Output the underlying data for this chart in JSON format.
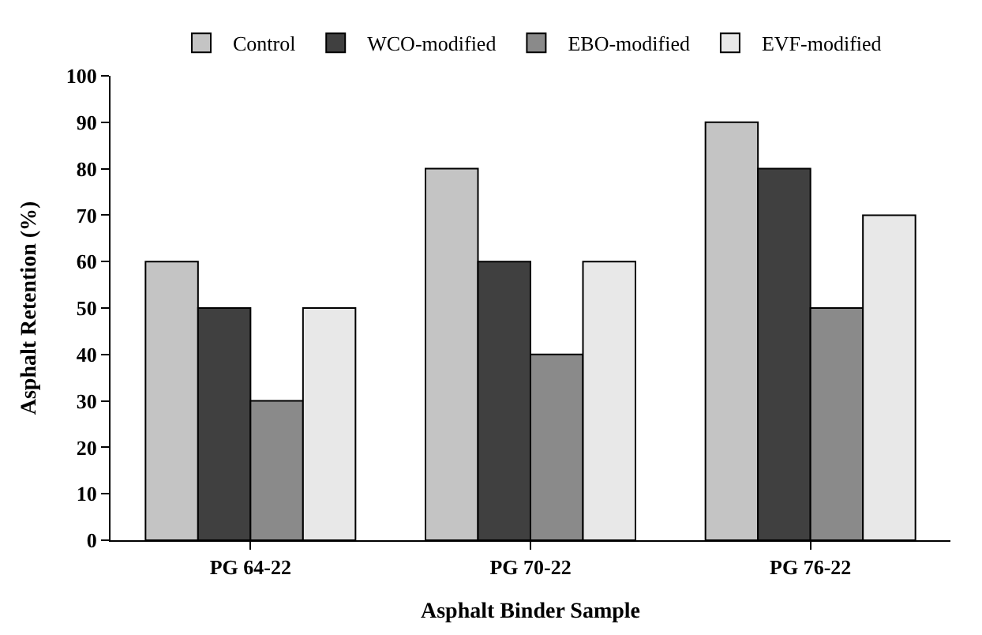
{
  "chart_data": {
    "type": "bar",
    "xlabel": "Asphalt Binder Sample",
    "ylabel": "Asphalt Retention (%)",
    "categories": [
      "PG 64-22",
      "PG 70-22",
      "PG 76-22"
    ],
    "series": [
      {
        "name": "Control",
        "color": "#c4c4c4",
        "values": [
          60,
          80,
          90
        ]
      },
      {
        "name": "WCO-modified",
        "color": "#404040",
        "values": [
          50,
          60,
          80
        ]
      },
      {
        "name": "EBO-modified",
        "color": "#8a8a8a",
        "values": [
          30,
          40,
          50
        ]
      },
      {
        "name": "EVF-modified",
        "color": "#e8e8e8",
        "values": [
          50,
          60,
          70
        ]
      }
    ],
    "ylim": [
      0,
      100
    ],
    "yticks": [
      0,
      10,
      20,
      30,
      40,
      50,
      60,
      70,
      80,
      90,
      100
    ],
    "legend": "top"
  }
}
